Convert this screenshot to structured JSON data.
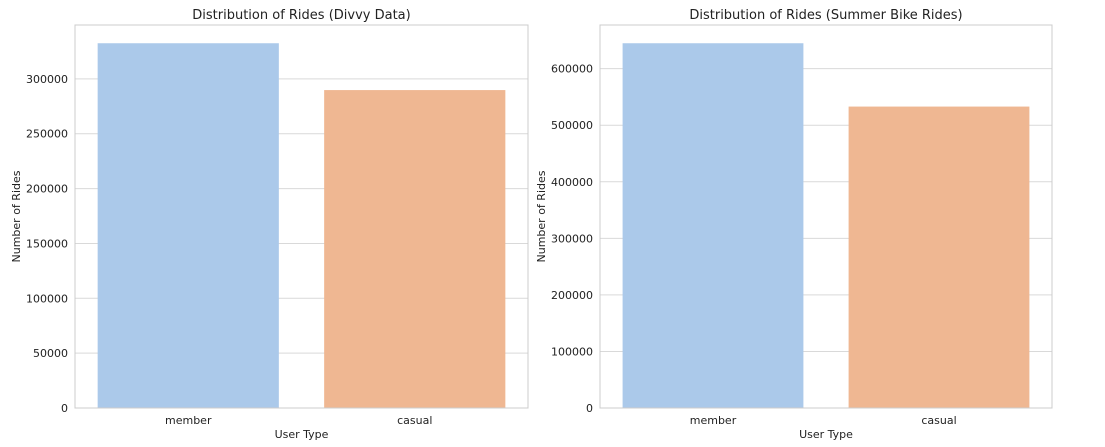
{
  "chart_data": [
    {
      "type": "bar",
      "title": "Distribution of Rides (Divvy Data)",
      "xlabel": "User Type",
      "ylabel": "Number of Rides",
      "categories": [
        "member",
        "casual"
      ],
      "values": [
        332500,
        289800
      ],
      "colors": [
        "#abc9ea",
        "#efb792"
      ],
      "ylim": [
        0,
        349125
      ],
      "yticks": [
        0,
        50000,
        100000,
        150000,
        200000,
        250000,
        300000
      ],
      "grid": true
    },
    {
      "type": "bar",
      "title": "Distribution of Rides (Summer Bike Rides)",
      "xlabel": "User Type",
      "ylabel": "Number of Rides",
      "categories": [
        "member",
        "casual"
      ],
      "values": [
        645000,
        533000
      ],
      "colors": [
        "#abc9ea",
        "#efb792"
      ],
      "ylim": [
        0,
        677250
      ],
      "yticks": [
        0,
        100000,
        200000,
        300000,
        400000,
        500000,
        600000
      ],
      "grid": true
    }
  ]
}
